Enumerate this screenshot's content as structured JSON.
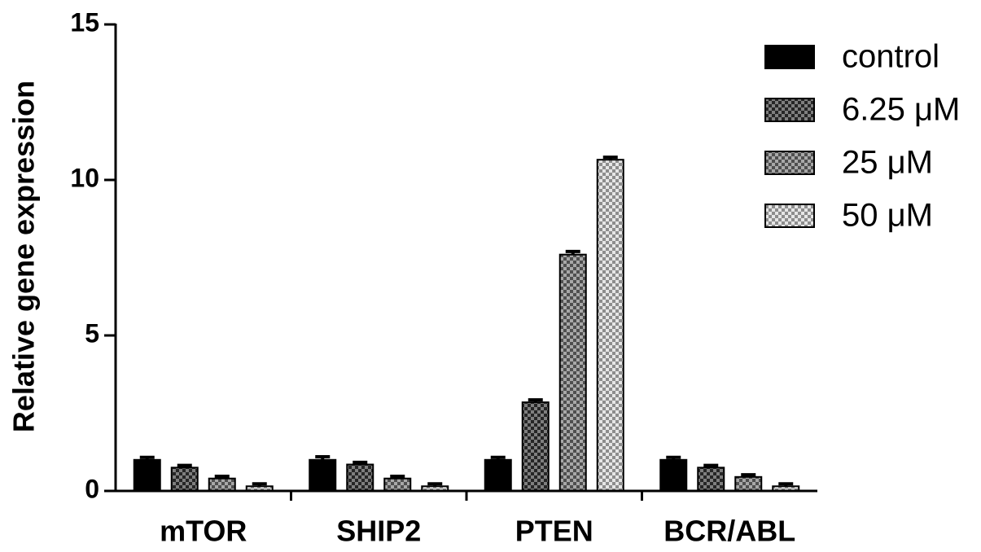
{
  "chart_data": {
    "type": "bar",
    "y_label": "Relative gene expression",
    "categories": [
      "mTOR",
      "SHIP2",
      "PTEN",
      "BCR/ABL"
    ],
    "series": [
      {
        "name": "control",
        "color": "#000000",
        "pattern": "solid",
        "values": [
          1.0,
          1.0,
          1.0,
          1.0
        ],
        "errors": [
          0.08,
          0.1,
          0.08,
          0.08
        ]
      },
      {
        "name": "6.25 μM",
        "color": "#3a3a3a",
        "pattern": "checker",
        "values": [
          0.75,
          0.85,
          2.85,
          0.75
        ],
        "errors": [
          0.07,
          0.07,
          0.08,
          0.07
        ]
      },
      {
        "name": "25 μM",
        "color": "#7a7a7a",
        "pattern": "checker",
        "values": [
          0.4,
          0.4,
          7.6,
          0.45
        ],
        "errors": [
          0.07,
          0.07,
          0.1,
          0.07
        ]
      },
      {
        "name": "50 μM",
        "color": "#d8d8d8",
        "pattern": "checker",
        "values": [
          0.15,
          0.15,
          10.65,
          0.15
        ],
        "errors": [
          0.08,
          0.08,
          0.08,
          0.08
        ]
      }
    ],
    "ylim": [
      0,
      15
    ],
    "yticks": [
      0,
      5,
      10,
      15
    ],
    "grid": false,
    "legend": "top-right"
  }
}
